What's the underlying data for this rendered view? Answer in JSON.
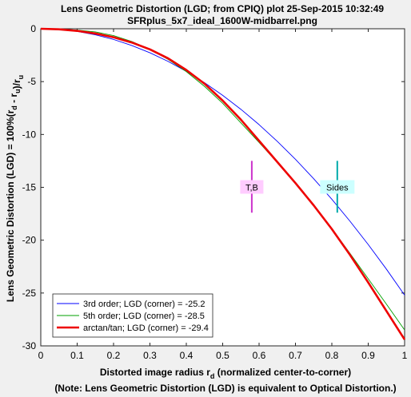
{
  "chart_data": {
    "type": "line",
    "title": "Lens Geometric Distortion (LGD; from CPIQ) plot   25-Sep-2015 10:32:49",
    "subtitle": "SFRplus_5x7_ideal_1600W-midbarrel.png",
    "xlabel": "Distorted image radius r",
    "xlabel_sub": "d",
    "xlabel_tail": "  (normalized center-to-corner)",
    "ylabel_parts": [
      {
        "t": "Lens Geometric Distortion (LGD) = 100%(r",
        "s": null
      },
      {
        "t": "d",
        "s": "sub"
      },
      {
        "t": " - r",
        "s": null
      },
      {
        "t": "u",
        "s": "sub"
      },
      {
        "t": ")/r",
        "s": null
      },
      {
        "t": "u",
        "s": "sub"
      }
    ],
    "footnote": "(Note: Lens Geometric Distortion (LGD) is equivalent to Optical Distortion.)",
    "xlim": [
      0,
      1
    ],
    "ylim": [
      -30,
      0
    ],
    "xticks": [
      0,
      0.1,
      0.2,
      0.3,
      0.4,
      0.5,
      0.6,
      0.7,
      0.8,
      0.9,
      1
    ],
    "xtick_labels": [
      "0",
      "0.1",
      "0.2",
      "0.3",
      "0.4",
      "0.5",
      "0.6",
      "0.7",
      "0.8",
      "0.9",
      "1"
    ],
    "yticks": [
      0,
      -5,
      -10,
      -15,
      -20,
      -25,
      -30
    ],
    "ytick_labels": [
      "0",
      "-5",
      "-10",
      "-15",
      "-20",
      "-25",
      "-30"
    ],
    "grid": false,
    "legend_position": "bottom-left",
    "series": [
      {
        "name": "3rd order;   LGD (corner) = -25.2",
        "color": "#0000ff",
        "width": 0.9,
        "x": [
          0,
          0.05,
          0.1,
          0.15,
          0.2,
          0.25,
          0.3,
          0.35,
          0.4,
          0.45,
          0.5,
          0.55,
          0.6,
          0.65,
          0.7,
          0.75,
          0.8,
          0.85,
          0.9,
          0.95,
          1
        ],
        "y": [
          0,
          -0.06,
          -0.25,
          -0.57,
          -1.01,
          -1.58,
          -2.27,
          -3.09,
          -4.03,
          -5.1,
          -6.3,
          -7.62,
          -9.07,
          -10.65,
          -12.35,
          -14.18,
          -16.13,
          -18.21,
          -20.41,
          -22.74,
          -25.2
        ]
      },
      {
        "name": "5th order;   LGD (corner) = -28.5",
        "color": "#00a000",
        "width": 0.9,
        "x": [
          0,
          0.05,
          0.1,
          0.15,
          0.2,
          0.25,
          0.3,
          0.35,
          0.4,
          0.45,
          0.5,
          0.55,
          0.6,
          0.65,
          0.7,
          0.75,
          0.8,
          0.85,
          0.9,
          0.95,
          1
        ],
        "y": [
          0,
          -0.03,
          -0.13,
          -0.3,
          -0.65,
          -1.2,
          -1.95,
          -2.9,
          -4.05,
          -5.45,
          -7.05,
          -8.9,
          -10.75,
          -12.65,
          -14.65,
          -16.7,
          -18.9,
          -21.25,
          -23.65,
          -26.05,
          -28.5
        ]
      },
      {
        "name": "arctan/tan; LGD (corner) = -29.4",
        "color": "#ee0000",
        "width": 2.6,
        "x": [
          0,
          0.05,
          0.1,
          0.15,
          0.2,
          0.25,
          0.3,
          0.35,
          0.4,
          0.45,
          0.5,
          0.55,
          0.6,
          0.65,
          0.7,
          0.75,
          0.8,
          0.85,
          0.9,
          0.95,
          1
        ],
        "y": [
          0,
          -0.05,
          -0.2,
          -0.45,
          -0.8,
          -1.3,
          -1.95,
          -2.8,
          -3.9,
          -5.2,
          -6.8,
          -8.6,
          -10.6,
          -12.6,
          -14.6,
          -16.7,
          -18.95,
          -21.4,
          -24.0,
          -26.7,
          -29.4
        ]
      }
    ],
    "markers": [
      {
        "label": "T,B",
        "x": 0.58,
        "y_range": [
          -12.5,
          -17.4
        ],
        "label_y": -15,
        "color": "#cc33cc",
        "box_color": "#ffccff"
      },
      {
        "label": "Sides",
        "x": 0.815,
        "y_range": [
          -12.5,
          -17.4
        ],
        "label_y": -15,
        "color": "#00aaaa",
        "box_color": "#ccffff"
      }
    ]
  }
}
